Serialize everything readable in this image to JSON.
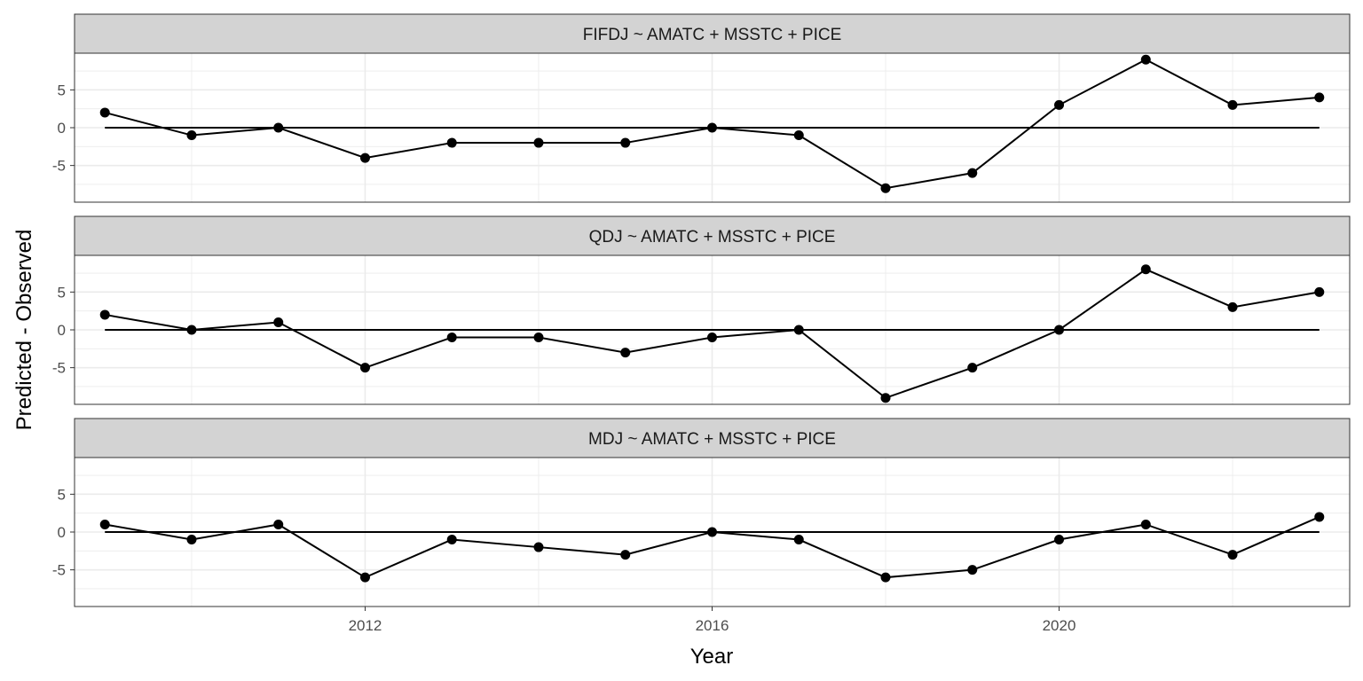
{
  "chart_data": {
    "type": "line",
    "xlabel": "Year",
    "ylabel": "Predicted - Observed",
    "xlim": [
      2008.65,
      2023.35
    ],
    "ylim": [
      -9.85,
      9.85
    ],
    "x_ticks": [
      2012,
      2016,
      2020
    ],
    "x_tick_labels": [
      "2012",
      "2016",
      "2020"
    ],
    "y_ticks": [
      -5,
      0,
      5
    ],
    "y_tick_labels": [
      "-5",
      "0",
      "5"
    ],
    "reference_line_y": 0,
    "grid": true,
    "x": [
      2009,
      2010,
      2011,
      2012,
      2013,
      2014,
      2015,
      2016,
      2017,
      2018,
      2019,
      2020,
      2021,
      2022,
      2023
    ],
    "panels": [
      {
        "strip_label": "FIFDJ ~ AMATC + MSSTC + PICE",
        "values": [
          2,
          -1,
          0,
          -4,
          -2,
          -2,
          -2,
          0,
          -1,
          -8,
          -6,
          3,
          9,
          3,
          4
        ]
      },
      {
        "strip_label": "QDJ ~ AMATC + MSSTC + PICE",
        "values": [
          2,
          0,
          1,
          -5,
          -1,
          -1,
          -3,
          -1,
          0,
          -9,
          -5,
          0,
          8,
          3,
          5
        ]
      },
      {
        "strip_label": "MDJ ~ AMATC + MSSTC + PICE",
        "values": [
          1,
          -1,
          1,
          -6,
          -1,
          -2,
          -3,
          0,
          -1,
          -6,
          -5,
          -1,
          1,
          -3,
          2
        ]
      }
    ],
    "colors": {
      "line": "#000000",
      "strip_bg": "#d3d3d3",
      "grid": "#ebebeb"
    }
  }
}
